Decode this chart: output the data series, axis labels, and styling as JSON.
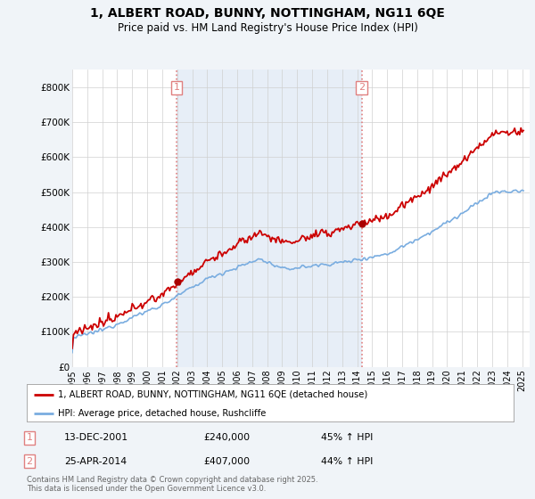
{
  "title": "1, ALBERT ROAD, BUNNY, NOTTINGHAM, NG11 6QE",
  "subtitle": "Price paid vs. HM Land Registry's House Price Index (HPI)",
  "legend_property": "1, ALBERT ROAD, BUNNY, NOTTINGHAM, NG11 6QE (detached house)",
  "legend_hpi": "HPI: Average price, detached house, Rushcliffe",
  "sale1_date": "13-DEC-2001",
  "sale1_price": 240000,
  "sale1_label": "45% ↑ HPI",
  "sale1_year": 2001.96,
  "sale2_date": "25-APR-2014",
  "sale2_price": 407000,
  "sale2_label": "44% ↑ HPI",
  "sale2_year": 2014.31,
  "footer": "Contains HM Land Registry data © Crown copyright and database right 2025.\nThis data is licensed under the Open Government Licence v3.0.",
  "property_color": "#cc0000",
  "hpi_color": "#7aade0",
  "sale_marker_color": "#aa0000",
  "dashed_line_color": "#e08080",
  "shade_color": "#dde8f5",
  "background_color": "#f0f4f8",
  "plot_bg_color": "#ffffff",
  "ylim": [
    0,
    850000
  ],
  "xlim_start": 1995.0,
  "xlim_end": 2025.5,
  "yticks": [
    0,
    100000,
    200000,
    300000,
    400000,
    500000,
    600000,
    700000,
    800000
  ],
  "ytick_labels": [
    "£0",
    "£100K",
    "£200K",
    "£300K",
    "£400K",
    "£500K",
    "£600K",
    "£700K",
    "£800K"
  ],
  "xticks": [
    1995,
    1996,
    1997,
    1998,
    1999,
    2000,
    2001,
    2002,
    2003,
    2004,
    2005,
    2006,
    2007,
    2008,
    2009,
    2010,
    2011,
    2012,
    2013,
    2014,
    2015,
    2016,
    2017,
    2018,
    2019,
    2020,
    2021,
    2022,
    2023,
    2024,
    2025
  ]
}
